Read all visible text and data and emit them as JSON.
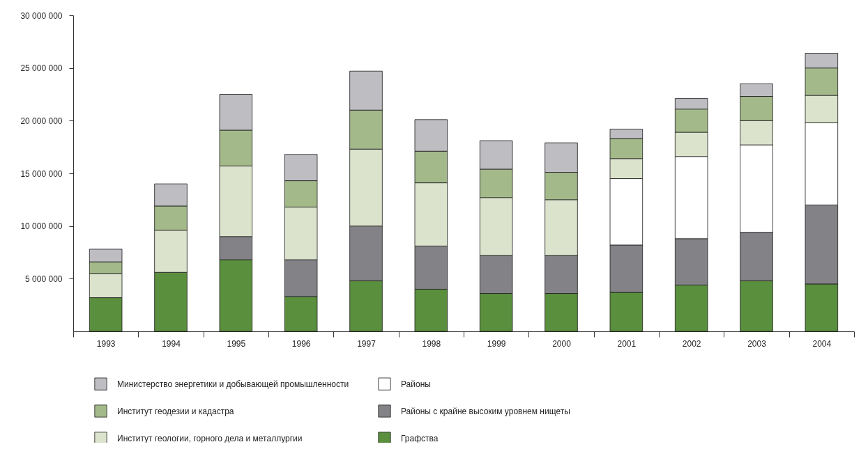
{
  "chart_data": {
    "type": "bar",
    "stacked": true,
    "categories": [
      "1993",
      "1994",
      "1995",
      "1996",
      "1997",
      "1998",
      "1999",
      "2000",
      "2001",
      "2002",
      "2003",
      "2004"
    ],
    "series": [
      {
        "name": "Графства",
        "color": "#5a8f3e",
        "values": [
          3200000,
          5600000,
          6800000,
          3300000,
          4800000,
          4000000,
          3600000,
          3600000,
          3700000,
          4400000,
          4800000,
          4500000
        ]
      },
      {
        "name": "Районы с крайне высоким уровнем нищеты",
        "color": "#838387",
        "values": [
          null,
          null,
          2200000,
          3500000,
          5200000,
          4100000,
          3600000,
          3600000,
          4500000,
          4400000,
          4600000,
          7500000
        ]
      },
      {
        "name": "Районы",
        "color": "#ffffff",
        "values": [
          null,
          null,
          null,
          null,
          null,
          null,
          null,
          null,
          6300000,
          7800000,
          8300000,
          7800000
        ]
      },
      {
        "name": "Институт геологии, горного дела и металлургии",
        "color": "#dbe3cc",
        "values": [
          2300000,
          4000000,
          6700000,
          5000000,
          7300000,
          6000000,
          5500000,
          5300000,
          1900000,
          2300000,
          2300000,
          2600000
        ]
      },
      {
        "name": "Институт геодезии и кадастра",
        "color": "#a3b98a",
        "values": [
          1100000,
          2300000,
          3400000,
          2500000,
          3700000,
          3000000,
          2700000,
          2600000,
          1900000,
          2200000,
          2300000,
          2600000
        ]
      },
      {
        "name": "Министерство энергетики и добывающей промышленности",
        "color": "#bdbdc2",
        "values": [
          1200000,
          2100000,
          3400000,
          2500000,
          3700000,
          3000000,
          2700000,
          2800000,
          900000,
          1000000,
          1200000,
          1400000
        ]
      }
    ],
    "ylim": [
      0,
      30000000
    ],
    "yticks": [
      {
        "value": 5000000,
        "label": "5 000 000"
      },
      {
        "value": 10000000,
        "label": "10 000 000"
      },
      {
        "value": 15000000,
        "label": "15 000 000"
      },
      {
        "value": 20000000,
        "label": "20 000 000"
      },
      {
        "value": 25000000,
        "label": "25 000 000"
      },
      {
        "value": 30000000,
        "label": "30 000 000"
      }
    ],
    "grid": false,
    "legend": "bottom"
  }
}
